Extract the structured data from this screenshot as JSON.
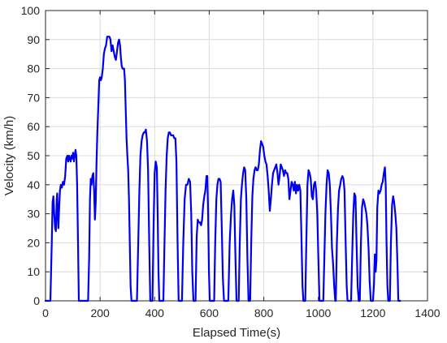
{
  "chart_data": {
    "type": "line",
    "title": "",
    "xlabel": "Elapsed Time(s)",
    "ylabel": "Velocity (km/h)",
    "xlim": [
      0,
      1400
    ],
    "ylim": [
      0,
      100
    ],
    "xticks": [
      0,
      200,
      400,
      600,
      800,
      1000,
      1200,
      1400
    ],
    "yticks": [
      0,
      10,
      20,
      30,
      40,
      50,
      60,
      70,
      80,
      90,
      100
    ],
    "grid": true,
    "legend": "none",
    "series": [
      {
        "color": "#0000ee",
        "points": [
          [
            0,
            0
          ],
          [
            18,
            0
          ],
          [
            23,
            20
          ],
          [
            26,
            34
          ],
          [
            29,
            36
          ],
          [
            32,
            30
          ],
          [
            35,
            25
          ],
          [
            38,
            24
          ],
          [
            41,
            35
          ],
          [
            43,
            37
          ],
          [
            45,
            30
          ],
          [
            47,
            25
          ],
          [
            50,
            32
          ],
          [
            53,
            38
          ],
          [
            56,
            40
          ],
          [
            60,
            39
          ],
          [
            64,
            41
          ],
          [
            68,
            40
          ],
          [
            72,
            43
          ],
          [
            76,
            49
          ],
          [
            80,
            50
          ],
          [
            83,
            48
          ],
          [
            86,
            50
          ],
          [
            89,
            49
          ],
          [
            92,
            48
          ],
          [
            95,
            50
          ],
          [
            98,
            49
          ],
          [
            101,
            51
          ],
          [
            104,
            48
          ],
          [
            107,
            50
          ],
          [
            110,
            52
          ],
          [
            113,
            50
          ],
          [
            116,
            40
          ],
          [
            119,
            20
          ],
          [
            122,
            0
          ],
          [
            150,
            0
          ],
          [
            156,
            0
          ],
          [
            160,
            15
          ],
          [
            163,
            35
          ],
          [
            166,
            42
          ],
          [
            169,
            40
          ],
          [
            172,
            43
          ],
          [
            175,
            44
          ],
          [
            178,
            38
          ],
          [
            181,
            28
          ],
          [
            184,
            34
          ],
          [
            187,
            48
          ],
          [
            190,
            58
          ],
          [
            194,
            68
          ],
          [
            197,
            76
          ],
          [
            200,
            77
          ],
          [
            203,
            76
          ],
          [
            206,
            77
          ],
          [
            210,
            80
          ],
          [
            214,
            85
          ],
          [
            218,
            87
          ],
          [
            222,
            88
          ],
          [
            226,
            91
          ],
          [
            230,
            91
          ],
          [
            234,
            91
          ],
          [
            238,
            90
          ],
          [
            242,
            86
          ],
          [
            246,
            88
          ],
          [
            250,
            86
          ],
          [
            254,
            84
          ],
          [
            258,
            83
          ],
          [
            262,
            86
          ],
          [
            266,
            89
          ],
          [
            270,
            90
          ],
          [
            273,
            88
          ],
          [
            276,
            84
          ],
          [
            279,
            81
          ],
          [
            282,
            80
          ],
          [
            285,
            80
          ],
          [
            288,
            80
          ],
          [
            291,
            76
          ],
          [
            294,
            66
          ],
          [
            297,
            56
          ],
          [
            300,
            50
          ],
          [
            303,
            45
          ],
          [
            306,
            35
          ],
          [
            309,
            20
          ],
          [
            312,
            5
          ],
          [
            315,
            0
          ],
          [
            335,
            0
          ],
          [
            340,
            20
          ],
          [
            344,
            38
          ],
          [
            348,
            50
          ],
          [
            352,
            55
          ],
          [
            356,
            57
          ],
          [
            360,
            58
          ],
          [
            364,
            58
          ],
          [
            368,
            59
          ],
          [
            372,
            55
          ],
          [
            376,
            45
          ],
          [
            380,
            20
          ],
          [
            384,
            0
          ],
          [
            392,
            0
          ],
          [
            396,
            25
          ],
          [
            400,
            44
          ],
          [
            404,
            48
          ],
          [
            408,
            46
          ],
          [
            411,
            30
          ],
          [
            414,
            10
          ],
          [
            417,
            0
          ],
          [
            432,
            0
          ],
          [
            436,
            20
          ],
          [
            440,
            38
          ],
          [
            444,
            50
          ],
          [
            448,
            56
          ],
          [
            452,
            58
          ],
          [
            456,
            58
          ],
          [
            460,
            57
          ],
          [
            464,
            57
          ],
          [
            468,
            57
          ],
          [
            472,
            56
          ],
          [
            476,
            56
          ],
          [
            480,
            48
          ],
          [
            484,
            20
          ],
          [
            488,
            0
          ],
          [
            500,
            0
          ],
          [
            505,
            20
          ],
          [
            510,
            35
          ],
          [
            515,
            40
          ],
          [
            520,
            40
          ],
          [
            525,
            42
          ],
          [
            530,
            41
          ],
          [
            534,
            30
          ],
          [
            538,
            10
          ],
          [
            542,
            0
          ],
          [
            550,
            0
          ],
          [
            554,
            22
          ],
          [
            558,
            28
          ],
          [
            562,
            27
          ],
          [
            566,
            27
          ],
          [
            570,
            26
          ],
          [
            574,
            28
          ],
          [
            578,
            33
          ],
          [
            582,
            36
          ],
          [
            586,
            38
          ],
          [
            590,
            43
          ],
          [
            593,
            43
          ],
          [
            596,
            30
          ],
          [
            599,
            10
          ],
          [
            602,
            0
          ],
          [
            618,
            0
          ],
          [
            622,
            20
          ],
          [
            626,
            35
          ],
          [
            630,
            40
          ],
          [
            634,
            42
          ],
          [
            638,
            42
          ],
          [
            642,
            41
          ],
          [
            646,
            25
          ],
          [
            650,
            8
          ],
          [
            654,
            0
          ],
          [
            670,
            0
          ],
          [
            675,
            20
          ],
          [
            680,
            30
          ],
          [
            684,
            35
          ],
          [
            688,
            38
          ],
          [
            692,
            33
          ],
          [
            696,
            15
          ],
          [
            700,
            0
          ],
          [
            708,
            0
          ],
          [
            712,
            20
          ],
          [
            716,
            35
          ],
          [
            720,
            40
          ],
          [
            724,
            44
          ],
          [
            728,
            46
          ],
          [
            732,
            45
          ],
          [
            736,
            35
          ],
          [
            740,
            15
          ],
          [
            744,
            0
          ],
          [
            750,
            0
          ],
          [
            754,
            20
          ],
          [
            758,
            36
          ],
          [
            762,
            42
          ],
          [
            766,
            45
          ],
          [
            770,
            46
          ],
          [
            774,
            45
          ],
          [
            778,
            45
          ],
          [
            782,
            47
          ],
          [
            786,
            52
          ],
          [
            790,
            55
          ],
          [
            794,
            54
          ],
          [
            798,
            53
          ],
          [
            802,
            50
          ],
          [
            806,
            48
          ],
          [
            810,
            47
          ],
          [
            814,
            43
          ],
          [
            818,
            38
          ],
          [
            822,
            31
          ],
          [
            826,
            35
          ],
          [
            830,
            40
          ],
          [
            834,
            44
          ],
          [
            838,
            45
          ],
          [
            842,
            46
          ],
          [
            846,
            47
          ],
          [
            850,
            44
          ],
          [
            854,
            40
          ],
          [
            858,
            43
          ],
          [
            862,
            47
          ],
          [
            866,
            46
          ],
          [
            870,
            45
          ],
          [
            874,
            43
          ],
          [
            878,
            45
          ],
          [
            882,
            44
          ],
          [
            886,
            44
          ],
          [
            890,
            42
          ],
          [
            894,
            35
          ],
          [
            898,
            38
          ],
          [
            902,
            41
          ],
          [
            906,
            40
          ],
          [
            910,
            38
          ],
          [
            914,
            41
          ],
          [
            918,
            37
          ],
          [
            922,
            40
          ],
          [
            926,
            38
          ],
          [
            930,
            40
          ],
          [
            934,
            38
          ],
          [
            938,
            22
          ],
          [
            942,
            5
          ],
          [
            945,
            0
          ],
          [
            952,
            0
          ],
          [
            956,
            20
          ],
          [
            960,
            40
          ],
          [
            964,
            45
          ],
          [
            968,
            44
          ],
          [
            972,
            42
          ],
          [
            976,
            36
          ],
          [
            980,
            35
          ],
          [
            984,
            40
          ],
          [
            988,
            41
          ],
          [
            992,
            38
          ],
          [
            996,
            30
          ],
          [
            1000,
            15
          ],
          [
            1004,
            0
          ],
          [
            1018,
            0
          ],
          [
            1022,
            15
          ],
          [
            1026,
            30
          ],
          [
            1030,
            40
          ],
          [
            1034,
            45
          ],
          [
            1038,
            44
          ],
          [
            1042,
            40
          ],
          [
            1046,
            30
          ],
          [
            1050,
            18
          ],
          [
            1054,
            13
          ],
          [
            1058,
            5
          ],
          [
            1062,
            0
          ],
          [
            1064,
            0
          ],
          [
            1068,
            20
          ],
          [
            1072,
            32
          ],
          [
            1076,
            38
          ],
          [
            1080,
            40
          ],
          [
            1084,
            42
          ],
          [
            1088,
            43
          ],
          [
            1092,
            42
          ],
          [
            1096,
            38
          ],
          [
            1100,
            20
          ],
          [
            1104,
            5
          ],
          [
            1107,
            0
          ],
          [
            1120,
            0
          ],
          [
            1124,
            15
          ],
          [
            1128,
            30
          ],
          [
            1132,
            37
          ],
          [
            1136,
            36
          ],
          [
            1140,
            20
          ],
          [
            1144,
            5
          ],
          [
            1148,
            0
          ],
          [
            1152,
            0
          ],
          [
            1156,
            20
          ],
          [
            1160,
            32
          ],
          [
            1164,
            35
          ],
          [
            1168,
            34
          ],
          [
            1172,
            32
          ],
          [
            1176,
            30
          ],
          [
            1180,
            26
          ],
          [
            1184,
            18
          ],
          [
            1188,
            7
          ],
          [
            1192,
            0
          ],
          [
            1200,
            0
          ],
          [
            1204,
            6
          ],
          [
            1207,
            16
          ],
          [
            1210,
            10
          ],
          [
            1213,
            14
          ],
          [
            1216,
            32
          ],
          [
            1220,
            38
          ],
          [
            1224,
            37
          ],
          [
            1228,
            38
          ],
          [
            1232,
            40
          ],
          [
            1236,
            41
          ],
          [
            1240,
            44
          ],
          [
            1244,
            46
          ],
          [
            1247,
            40
          ],
          [
            1250,
            20
          ],
          [
            1253,
            5
          ],
          [
            1256,
            0
          ],
          [
            1262,
            0
          ],
          [
            1266,
            20
          ],
          [
            1270,
            33
          ],
          [
            1274,
            36
          ],
          [
            1278,
            34
          ],
          [
            1282,
            30
          ],
          [
            1286,
            25
          ],
          [
            1290,
            12
          ],
          [
            1293,
            0
          ],
          [
            1300,
            0
          ]
        ]
      }
    ]
  }
}
